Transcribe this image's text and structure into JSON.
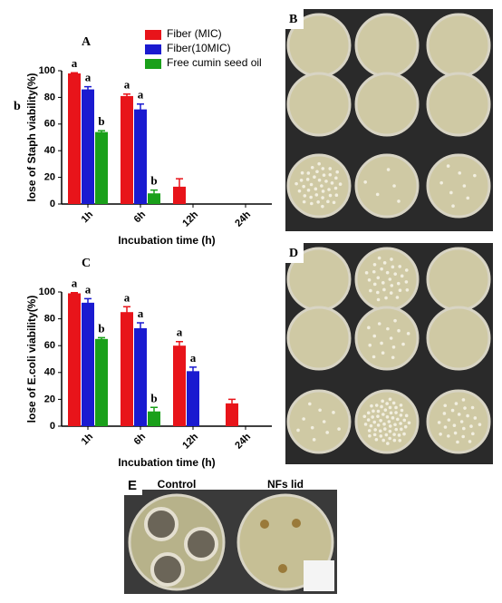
{
  "chart_data": [
    {
      "type": "bar",
      "panel": "A",
      "side_note": "b",
      "ylabel": "lose of Staph viability(%)",
      "xlabel": "Incubation time (h)",
      "categories": [
        "1h",
        "6h",
        "12h",
        "24h"
      ],
      "ylim": [
        0,
        100
      ],
      "yticks": [
        0,
        20,
        40,
        60,
        80,
        100
      ],
      "legend": "top-right",
      "series": [
        {
          "name": "Fiber (MIC)",
          "color": "#e8141a",
          "values": [
            98,
            81,
            13,
            null
          ],
          "errors": [
            0.5,
            1.5,
            6,
            null
          ],
          "value_labels": [
            "a",
            "a",
            null,
            null
          ]
        },
        {
          "name": "Fiber(10MIC)",
          "color": "#1a1ad0",
          "values": [
            86,
            71,
            null,
            null
          ],
          "errors": [
            2,
            4,
            null,
            null
          ],
          "value_labels": [
            "a",
            "a",
            null,
            null
          ]
        },
        {
          "name": "Free cumin seed oil",
          "color": "#1aa01a",
          "values": [
            54,
            8,
            null,
            null
          ],
          "errors": [
            1,
            2.5,
            null,
            null
          ],
          "value_labels": [
            "b",
            "b",
            null,
            null
          ]
        }
      ]
    },
    {
      "type": "bar",
      "panel": "C",
      "ylabel": "lose of E.coli viability(%)",
      "xlabel": "Incubation time (h)",
      "categories": [
        "1h",
        "6h",
        "12h",
        "24h"
      ],
      "ylim": [
        0,
        100
      ],
      "yticks": [
        0,
        20,
        40,
        60,
        80,
        100
      ],
      "series": [
        {
          "color": "#e8141a",
          "values": [
            99,
            85,
            60,
            17
          ],
          "errors": [
            0.5,
            4,
            3,
            3
          ],
          "value_labels": [
            "a",
            "a",
            "a",
            null
          ]
        },
        {
          "color": "#1a1ad0",
          "values": [
            92,
            73,
            41,
            null
          ],
          "errors": [
            3,
            4,
            3,
            null
          ],
          "value_labels": [
            "a",
            "a",
            "a",
            null
          ]
        },
        {
          "color": "#1aa01a",
          "values": [
            65,
            11,
            null,
            null
          ],
          "errors": [
            1,
            3,
            null,
            null
          ],
          "value_labels": [
            "b",
            "b",
            null,
            null
          ]
        }
      ]
    }
  ],
  "photo_panels": {
    "B": {
      "label": "B"
    },
    "D": {
      "label": "D"
    },
    "E": {
      "label": "E",
      "captions": [
        "Control",
        "NFs lid"
      ]
    }
  }
}
